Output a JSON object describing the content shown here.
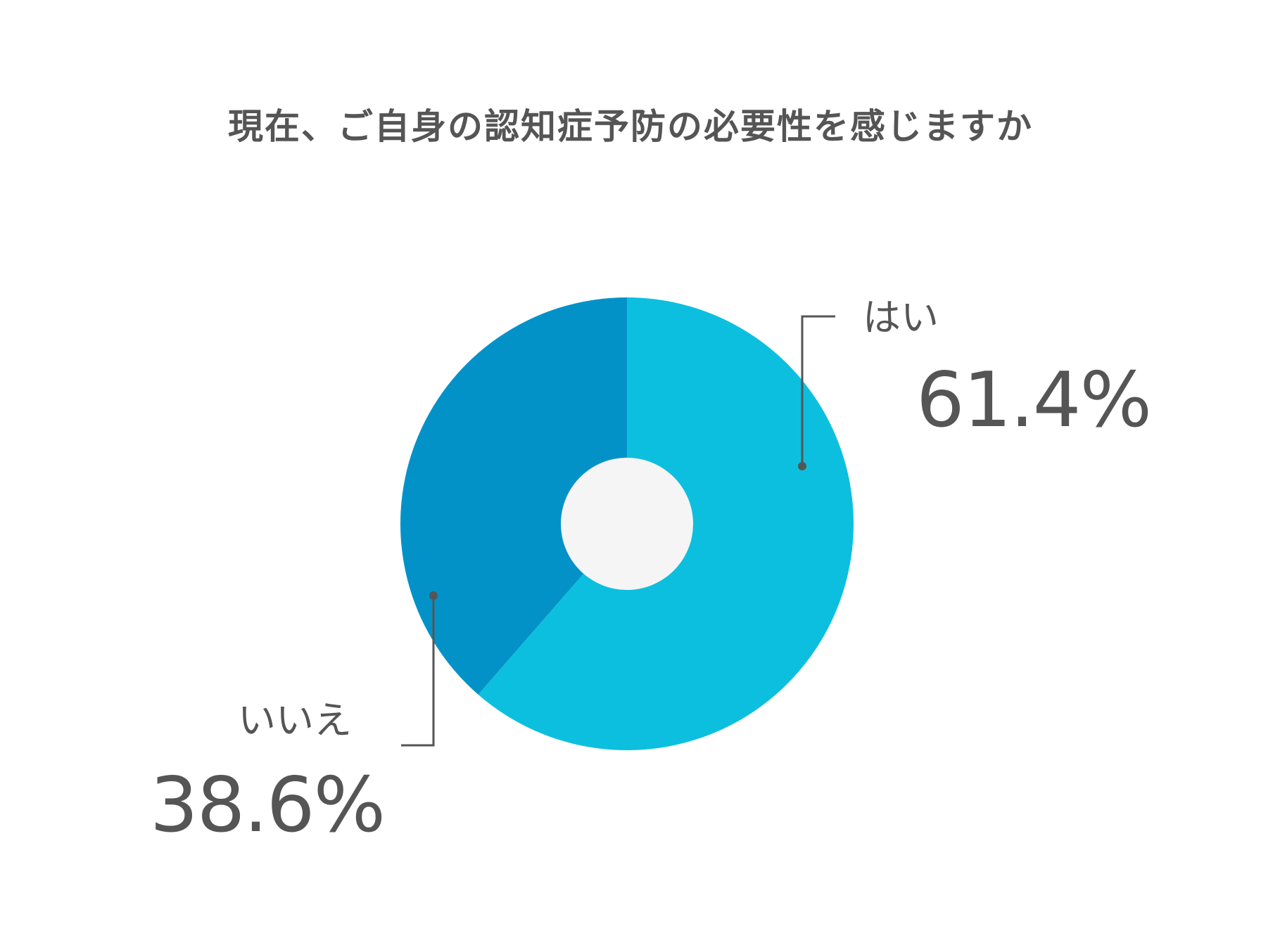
{
  "chart_data": {
    "type": "pie",
    "title": "現在、ご自身の認知症予防の必要性を感じますか",
    "donut": true,
    "legend": "none",
    "slices": [
      {
        "label": "はい",
        "value": 61.4,
        "display": "61.4%",
        "color": "#0dbfdf"
      },
      {
        "label": "いいえ",
        "value": 38.6,
        "display": "38.6%",
        "color": "#0392c8"
      }
    ],
    "hole_color": "#f5f5f5",
    "text_color": "#555555",
    "leader_color": "#555555"
  }
}
